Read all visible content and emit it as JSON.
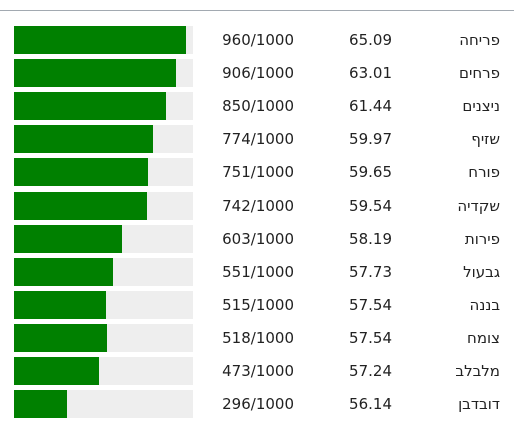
{
  "table": {
    "scale_max": 1000,
    "rows": [
      {
        "word": "פריחה",
        "score": "65.09",
        "rating": {
          "value": 960,
          "label": "960/1000"
        }
      },
      {
        "word": "פרחים",
        "score": "63.01",
        "rating": {
          "value": 906,
          "label": "906/1000"
        }
      },
      {
        "word": "ניצנים",
        "score": "61.44",
        "rating": {
          "value": 850,
          "label": "850/1000"
        }
      },
      {
        "word": "שזיף",
        "score": "59.97",
        "rating": {
          "value": 774,
          "label": "774/1000"
        }
      },
      {
        "word": "פורח",
        "score": "59.65",
        "rating": {
          "value": 751,
          "label": "751/1000"
        }
      },
      {
        "word": "שקדיה",
        "score": "59.54",
        "rating": {
          "value": 742,
          "label": "742/1000"
        }
      },
      {
        "word": "פירות",
        "score": "58.19",
        "rating": {
          "value": 603,
          "label": "603/1000"
        }
      },
      {
        "word": "גבעול",
        "score": "57.73",
        "rating": {
          "value": 551,
          "label": "551/1000"
        }
      },
      {
        "word": "בננה",
        "score": "57.54",
        "rating": {
          "value": 515,
          "label": "515/1000"
        }
      },
      {
        "word": "צומח",
        "score": "57.54",
        "rating": {
          "value": 518,
          "label": "518/1000"
        }
      },
      {
        "word": "מלבלב",
        "score": "57.24",
        "rating": {
          "value": 473,
          "label": "473/1000"
        }
      },
      {
        "word": "דובדבן",
        "score": "56.14",
        "rating": {
          "value": 296,
          "label": "296/1000"
        }
      }
    ]
  }
}
